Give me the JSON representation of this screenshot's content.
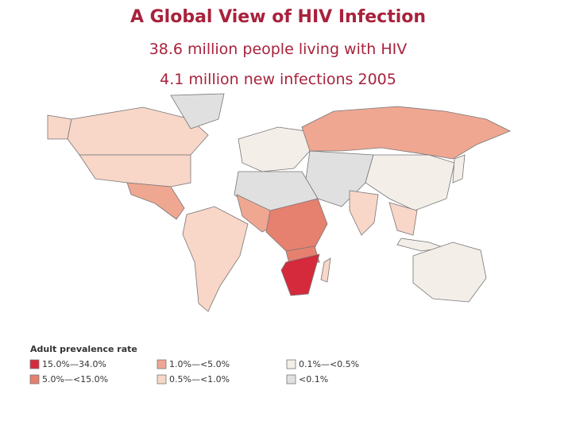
{
  "header": {
    "title": "A Global View of HIV Infection",
    "lines": [
      "38.6 million people living with HIV",
      "4.1 million new infections 2005"
    ]
  },
  "legend": {
    "title": "Adult prevalence rate",
    "items": [
      {
        "label": "15.0%—34.0%",
        "color": "#d42a3c"
      },
      {
        "label": "5.0%—<15.0%",
        "color": "#e6806f"
      },
      {
        "label": "1.0%—<5.0%",
        "color": "#efa792"
      },
      {
        "label": "0.5%—<1.0%",
        "color": "#f8d6c8"
      },
      {
        "label": "0.1%—<0.5%",
        "color": "#f3eee8"
      },
      {
        "label": "<0.1%",
        "color": "#e0e0e0"
      }
    ]
  }
}
